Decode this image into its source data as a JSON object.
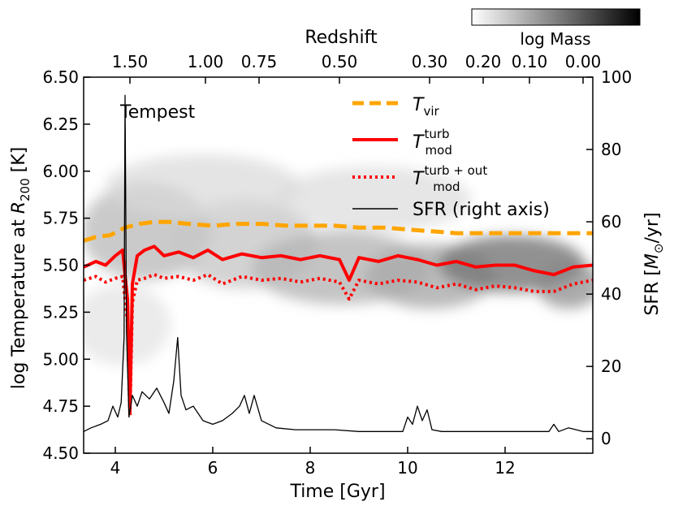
{
  "chart_data": {
    "type": "line",
    "background": "2D histogram of gas mass in log Temperature vs Time (grayscale)",
    "annotation": "Tempest",
    "xlabel": "Time [Gyr]",
    "xlim": [
      3.35,
      13.8
    ],
    "x_ticks": [
      4,
      6,
      8,
      10,
      12
    ],
    "ylabel": "log Temperature at R_200 [K]",
    "ylim": [
      4.5,
      6.5
    ],
    "y_ticks": [
      "4.50",
      "4.75",
      "5.00",
      "5.25",
      "5.50",
      "5.75",
      "6.00",
      "6.25",
      "6.50"
    ],
    "y2label": "SFR [M_⊙/yr]",
    "y2lim": [
      -4,
      100
    ],
    "y2_ticks": [
      0,
      20,
      40,
      60,
      80,
      100
    ],
    "top_axis": {
      "label": "Redshift",
      "ticks": [
        {
          "label": "1.50",
          "time": 4.3
        },
        {
          "label": "1.00",
          "time": 5.85
        },
        {
          "label": "0.75",
          "time": 6.95
        },
        {
          "label": "0.50",
          "time": 8.6
        },
        {
          "label": "0.30",
          "time": 10.45
        },
        {
          "label": "0.20",
          "time": 11.55
        },
        {
          "label": "0.10",
          "time": 12.5
        },
        {
          "label": "0.00",
          "time": 13.6
        }
      ]
    },
    "colorbar": {
      "label": "log Mass",
      "from": "#ffffff",
      "to": "#000000"
    },
    "legend": {
      "position": "top-right",
      "entries": [
        {
          "key": "tvir",
          "label": "T_vir"
        },
        {
          "key": "tturb",
          "label": "T_mod^turb"
        },
        {
          "key": "tturbout",
          "label": "T_mod^turb+out"
        },
        {
          "key": "sfr",
          "label": "SFR (right axis)"
        }
      ]
    },
    "series": [
      {
        "key": "tvir",
        "name": "T_vir",
        "color": "#ffa500",
        "style": "dashed",
        "axis": "left",
        "x": [
          3.35,
          3.6,
          3.9,
          4.2,
          4.5,
          4.8,
          5.1,
          5.5,
          6.0,
          6.5,
          7.0,
          7.5,
          8.0,
          8.5,
          9.0,
          9.5,
          10.0,
          10.5,
          11.0,
          11.5,
          12.0,
          12.5,
          13.0,
          13.5,
          13.8
        ],
        "values": [
          5.63,
          5.65,
          5.66,
          5.7,
          5.72,
          5.73,
          5.73,
          5.72,
          5.71,
          5.72,
          5.72,
          5.71,
          5.71,
          5.71,
          5.7,
          5.7,
          5.69,
          5.68,
          5.67,
          5.67,
          5.67,
          5.67,
          5.67,
          5.67,
          5.67
        ]
      },
      {
        "key": "tturb",
        "name": "T_mod^turb",
        "color": "#ff0000",
        "style": "solid",
        "axis": "left",
        "x": [
          3.35,
          3.6,
          3.8,
          4.0,
          4.15,
          4.25,
          4.3,
          4.35,
          4.45,
          4.6,
          4.8,
          5.0,
          5.3,
          5.6,
          5.9,
          6.2,
          6.6,
          7.0,
          7.4,
          7.8,
          8.2,
          8.6,
          8.8,
          9.0,
          9.4,
          9.8,
          10.2,
          10.6,
          11.0,
          11.4,
          11.8,
          12.2,
          12.6,
          13.0,
          13.4,
          13.8
        ],
        "values": [
          5.49,
          5.52,
          5.5,
          5.55,
          5.58,
          5.32,
          4.72,
          5.4,
          5.55,
          5.58,
          5.6,
          5.55,
          5.57,
          5.54,
          5.58,
          5.53,
          5.56,
          5.54,
          5.55,
          5.53,
          5.55,
          5.53,
          5.42,
          5.54,
          5.52,
          5.55,
          5.53,
          5.5,
          5.52,
          5.49,
          5.5,
          5.5,
          5.47,
          5.45,
          5.49,
          5.5
        ]
      },
      {
        "key": "tturbout",
        "name": "T_mod^turb+out",
        "color": "#ff0000",
        "style": "dotted",
        "axis": "left",
        "x": [
          3.35,
          3.6,
          3.8,
          4.0,
          4.15,
          4.25,
          4.3,
          4.35,
          4.45,
          4.6,
          4.8,
          5.0,
          5.3,
          5.6,
          5.9,
          6.2,
          6.6,
          7.0,
          7.4,
          7.8,
          8.2,
          8.6,
          8.8,
          9.0,
          9.4,
          9.8,
          10.2,
          10.6,
          11.0,
          11.4,
          11.8,
          12.2,
          12.6,
          13.0,
          13.4,
          13.8
        ],
        "values": [
          5.42,
          5.44,
          5.41,
          5.43,
          5.44,
          5.2,
          4.7,
          5.3,
          5.42,
          5.43,
          5.45,
          5.43,
          5.44,
          5.42,
          5.45,
          5.4,
          5.44,
          5.42,
          5.43,
          5.41,
          5.43,
          5.41,
          5.32,
          5.42,
          5.4,
          5.42,
          5.41,
          5.38,
          5.4,
          5.37,
          5.39,
          5.38,
          5.36,
          5.36,
          5.4,
          5.42
        ]
      },
      {
        "key": "sfr",
        "name": "SFR (right axis)",
        "color": "#000000",
        "style": "solid",
        "axis": "right",
        "x": [
          3.35,
          3.5,
          3.7,
          3.85,
          3.95,
          4.05,
          4.12,
          4.18,
          4.2,
          4.23,
          4.28,
          4.35,
          4.45,
          4.55,
          4.7,
          4.85,
          5.0,
          5.1,
          5.2,
          5.28,
          5.35,
          5.45,
          5.6,
          5.8,
          6.0,
          6.2,
          6.4,
          6.55,
          6.65,
          6.75,
          6.85,
          7.0,
          7.3,
          7.7,
          8.0,
          8.5,
          9.0,
          9.5,
          9.9,
          10.0,
          10.1,
          10.2,
          10.3,
          10.4,
          10.5,
          10.7,
          11.0,
          11.5,
          12.0,
          12.5,
          12.9,
          13.0,
          13.1,
          13.3,
          13.6,
          13.8
        ],
        "values": [
          2,
          3,
          4,
          5,
          9,
          6,
          10,
          28,
          95,
          30,
          6,
          12,
          9,
          13,
          11,
          14,
          10,
          7,
          16,
          28,
          12,
          8,
          9,
          5,
          4,
          5,
          7,
          9,
          12,
          7,
          12,
          5,
          3,
          2.5,
          2.5,
          2.5,
          2,
          2,
          2,
          6,
          4,
          9,
          5,
          8,
          2.5,
          2,
          2,
          2,
          2,
          2,
          2,
          4,
          2,
          3,
          2,
          2
        ]
      }
    ]
  }
}
